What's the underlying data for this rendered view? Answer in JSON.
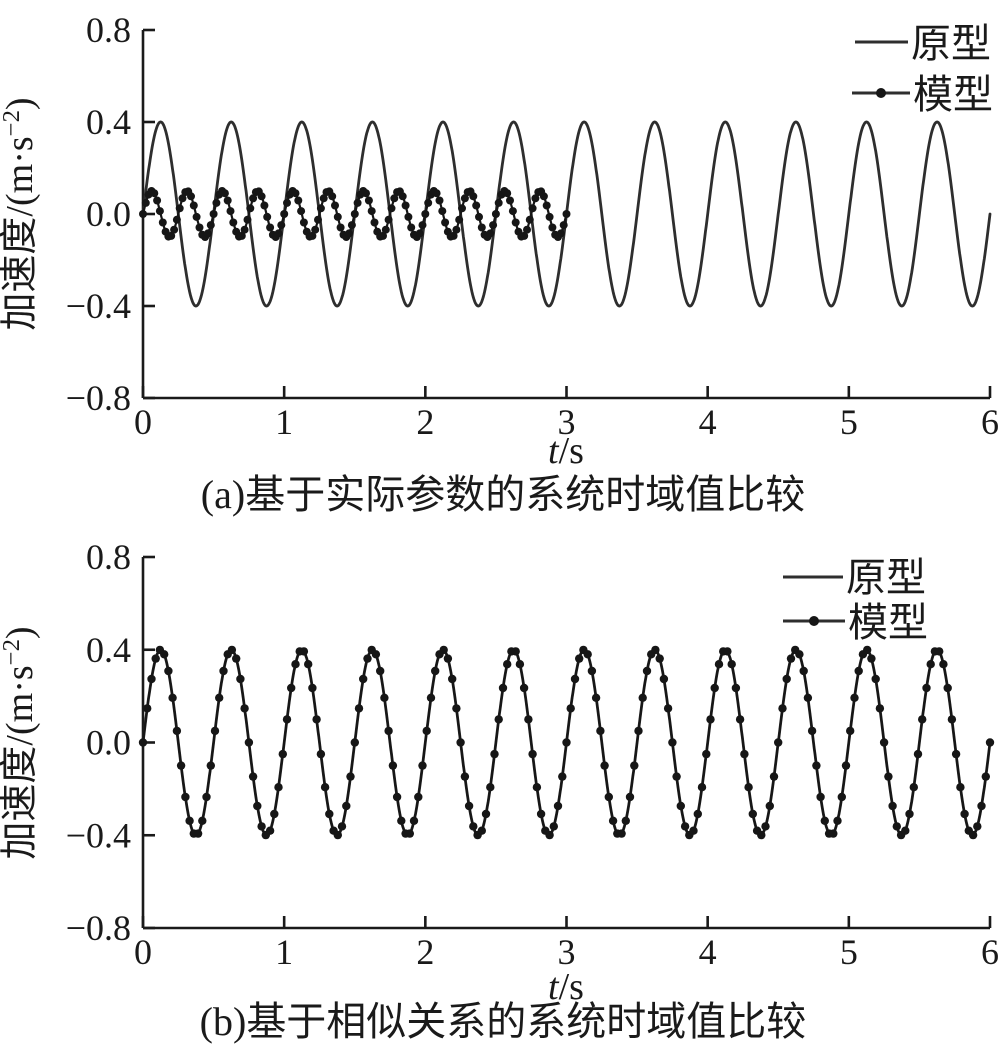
{
  "figure": {
    "background": "#ffffff",
    "ink_color": "#1a1a1a",
    "prototype_line_color": "#2e2e2e",
    "model_dot_color": "#161616"
  },
  "chart_data": [
    {
      "type": "line",
      "caption": "(a)基于实际参数的系统时域值比较",
      "xlabel": "t/s",
      "xlabel_var": "t",
      "xlabel_unit": "/s",
      "ylabel": "加速度/(m·s⁻²)",
      "ylabel_pre": "加速度/(m·s",
      "ylabel_sup": "−2",
      "ylabel_post": ")",
      "xlim": [
        0,
        6
      ],
      "ylim": [
        -0.8,
        0.8
      ],
      "xtick_values": [
        0,
        1,
        2,
        3,
        4,
        5,
        6
      ],
      "xticks": [
        "0",
        "1",
        "2",
        "3",
        "4",
        "5",
        "6"
      ],
      "ytick_values": [
        0.8,
        0.4,
        0.0,
        -0.4,
        -0.8
      ],
      "yticks": [
        "0.8",
        "0.4",
        "0.0",
        "−0.4",
        "−0.8"
      ],
      "grid": false,
      "legend_position": "top-right",
      "series": [
        {
          "name": "原型",
          "line": "solid",
          "marker": "none",
          "waveform": "sine",
          "amplitude": 0.4,
          "frequency_hz": 2,
          "phase_rad": 0,
          "t_start": 0,
          "t_end": 6
        },
        {
          "name": "模型",
          "line": "solid",
          "marker": "dot",
          "waveform": "sine",
          "amplitude": 0.1,
          "frequency_hz": 4,
          "phase_rad": 0,
          "t_start": 0,
          "t_end": 3,
          "marker_step_s": 0.02
        }
      ]
    },
    {
      "type": "line",
      "caption": "(b)基于相似关系的系统时域值比较",
      "xlabel": "t/s",
      "xlabel_var": "t",
      "xlabel_unit": "/s",
      "ylabel": "加速度/(m·s⁻²)",
      "ylabel_pre": "加速度/(m·s",
      "ylabel_sup": "−2",
      "ylabel_post": ")",
      "xlim": [
        0,
        6
      ],
      "ylim": [
        -0.8,
        0.8
      ],
      "xtick_values": [
        0,
        1,
        2,
        3,
        4,
        5,
        6
      ],
      "xticks": [
        "0",
        "1",
        "2",
        "3",
        "4",
        "5",
        "6"
      ],
      "ytick_values": [
        0.8,
        0.4,
        0.0,
        -0.4,
        -0.8
      ],
      "yticks": [
        "0.8",
        "0.4",
        "0.0",
        "−0.4",
        "−0.8"
      ],
      "grid": false,
      "legend_position": "top-right",
      "series": [
        {
          "name": "原型",
          "line": "solid",
          "marker": "none",
          "waveform": "sine",
          "amplitude": 0.4,
          "frequency_hz": 2,
          "phase_rad": 0,
          "t_start": 0,
          "t_end": 6
        },
        {
          "name": "模型",
          "line": "solid",
          "marker": "dot",
          "waveform": "sine",
          "amplitude": 0.4,
          "frequency_hz": 2,
          "phase_rad": 0,
          "t_start": 0,
          "t_end": 6,
          "marker_step_s": 0.03
        }
      ]
    }
  ]
}
